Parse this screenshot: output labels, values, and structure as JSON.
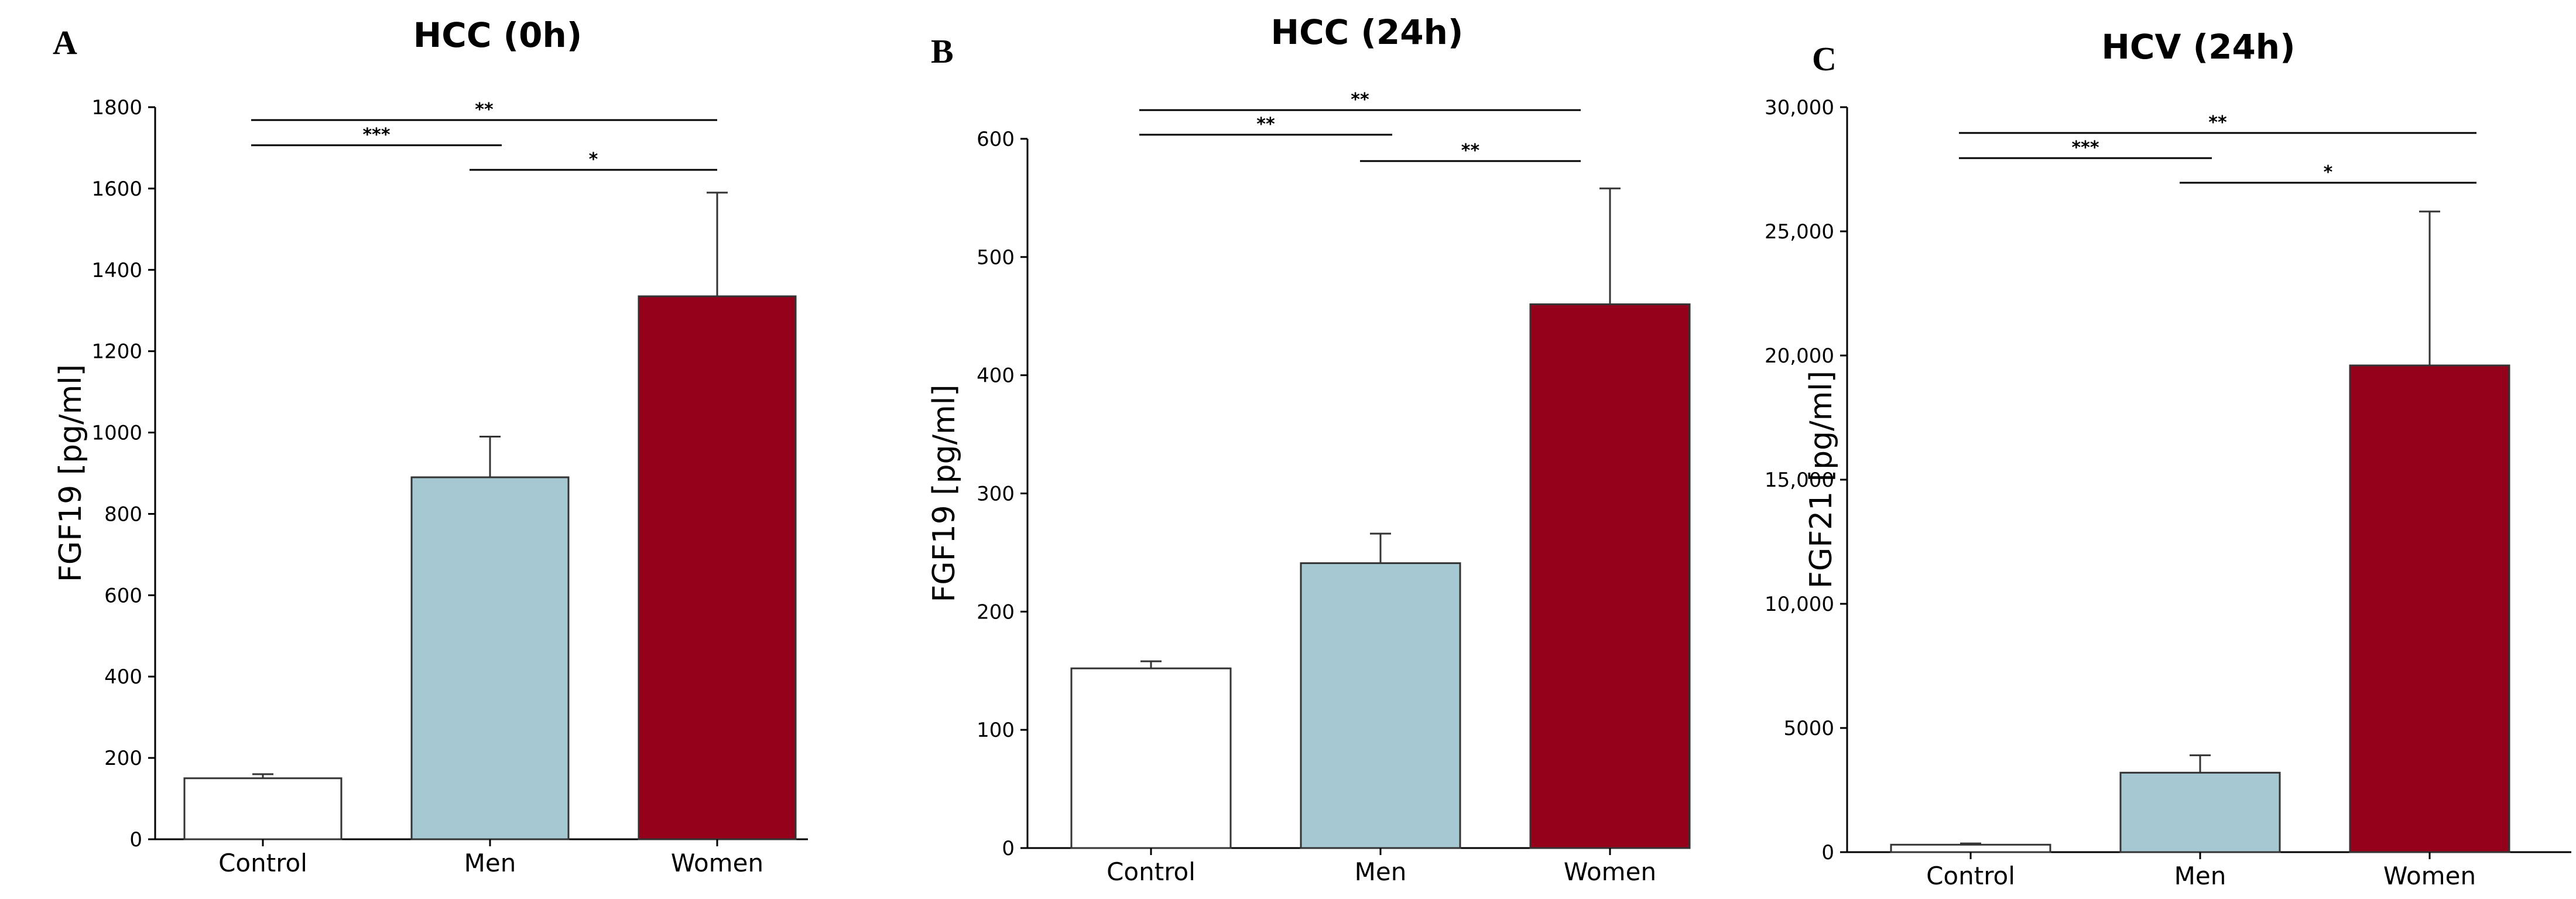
{
  "colors": {
    "control": "#ffffff",
    "men": "#a6c8d3",
    "women": "#95001b",
    "axis": "#000000",
    "bar_edge": "#333333"
  },
  "chart_data": [
    {
      "type": "bar",
      "panel": "A",
      "title": "HCC (0h)",
      "xlabel": "",
      "ylabel": "FGF19 [pg/ml]",
      "categories": [
        "Control",
        "Men",
        "Women"
      ],
      "values": [
        150,
        890,
        1335
      ],
      "errors": [
        10,
        100,
        255
      ],
      "ylim": [
        0,
        1800
      ],
      "yticks": [
        0,
        200,
        400,
        600,
        800,
        1000,
        1200,
        1400,
        1600,
        1800
      ],
      "ytick_labels": [
        "0",
        "200",
        "400",
        "600",
        "800",
        "1000",
        "1200",
        "1400",
        "1600",
        "1800"
      ],
      "significance": [
        {
          "from": 0,
          "to": 2,
          "label": "**",
          "level": 0
        },
        {
          "from": 0,
          "to": 1,
          "label": "***",
          "level": 1
        },
        {
          "from": 1,
          "to": 2,
          "label": "*",
          "level": 2
        }
      ]
    },
    {
      "type": "bar",
      "panel": "B",
      "title": "HCC (24h)",
      "xlabel": "",
      "ylabel": "FGF19 [pg/ml]",
      "categories": [
        "Control",
        "Men",
        "Women"
      ],
      "values": [
        152,
        241,
        460
      ],
      "errors": [
        6,
        25,
        98
      ],
      "ylim": [
        0,
        600
      ],
      "yticks": [
        0,
        100,
        200,
        300,
        400,
        500,
        600
      ],
      "ytick_labels": [
        "0",
        "100",
        "200",
        "300",
        "400",
        "500",
        "600"
      ],
      "significance": [
        {
          "from": 0,
          "to": 2,
          "label": "**",
          "level": 0
        },
        {
          "from": 0,
          "to": 1,
          "label": "**",
          "level": 1
        },
        {
          "from": 1,
          "to": 2,
          "label": "**",
          "level": 2
        }
      ]
    },
    {
      "type": "bar",
      "panel": "C",
      "title": "HCV (24h)",
      "xlabel": "",
      "ylabel": "FGF21 [pg/ml]",
      "categories": [
        "Control",
        "Men",
        "Women"
      ],
      "values": [
        300,
        3200,
        19600
      ],
      "errors": [
        50,
        700,
        6200
      ],
      "ylim": [
        0,
        30000
      ],
      "yticks": [
        0,
        5000,
        10000,
        15000,
        20000,
        25000,
        30000
      ],
      "ytick_labels": [
        "0",
        "5000",
        "10,000",
        "15,000",
        "20,000",
        "25,000",
        "30,000"
      ],
      "significance": [
        {
          "from": 0,
          "to": 2,
          "label": "**",
          "level": 0
        },
        {
          "from": 0,
          "to": 1,
          "label": "***",
          "level": 1
        },
        {
          "from": 1,
          "to": 2,
          "label": "*",
          "level": 2
        }
      ]
    }
  ]
}
